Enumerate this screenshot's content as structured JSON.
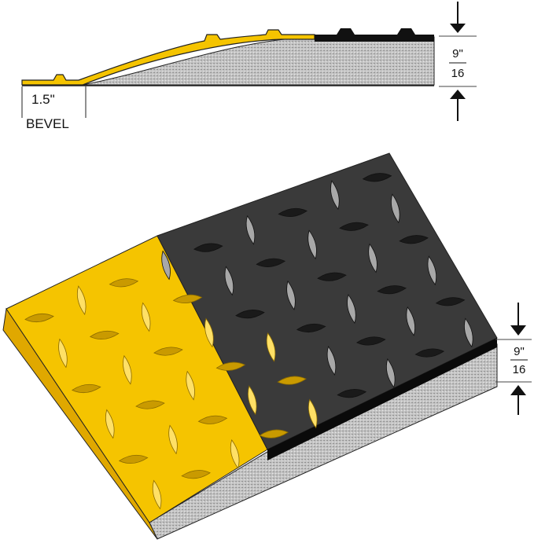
{
  "profile": {
    "bevel_width": "1.5\"",
    "bevel_label": "BEVEL",
    "thickness_numerator": "9\"",
    "thickness_denominator": "16"
  },
  "mat": {
    "thickness_numerator": "9\"",
    "thickness_denominator": "16"
  },
  "colors": {
    "safety_yellow": "#f5c400",
    "black_surface": "#3a3a3a",
    "foam": "#bdbdbd"
  }
}
